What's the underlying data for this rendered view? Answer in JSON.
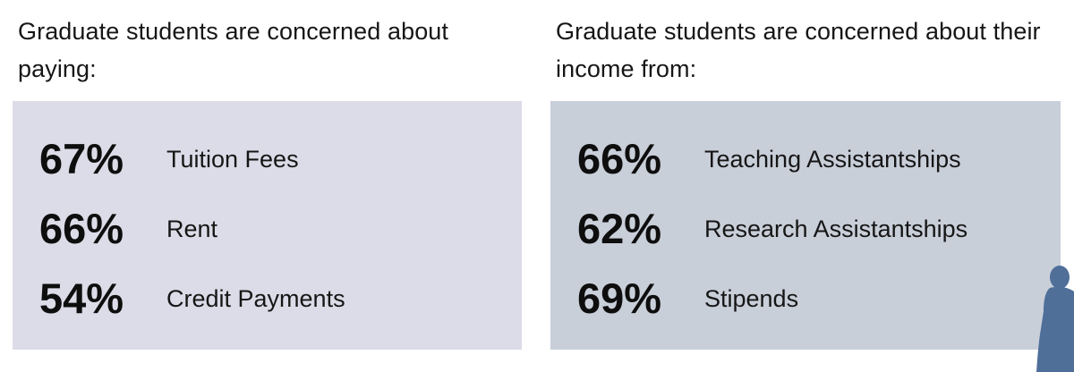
{
  "left": {
    "heading": "Graduate students are concerned about paying:",
    "items": [
      {
        "value": "67%",
        "label": "Tuition Fees"
      },
      {
        "value": "66%",
        "label": "Rent"
      },
      {
        "value": "54%",
        "label": "Credit Payments"
      }
    ]
  },
  "right": {
    "heading": "Graduate students are concerned about their income from:",
    "items": [
      {
        "value": "66%",
        "label": "Teaching Assistantships"
      },
      {
        "value": "62%",
        "label": "Research Assistantships"
      },
      {
        "value": "69%",
        "label": "Stipends"
      }
    ]
  },
  "colors": {
    "left_panel": "#dcdce8",
    "right_panel": "#c9cfd9",
    "silhouette": "#4f6f99"
  },
  "icons": {
    "person": "person-silhouette-icon"
  }
}
